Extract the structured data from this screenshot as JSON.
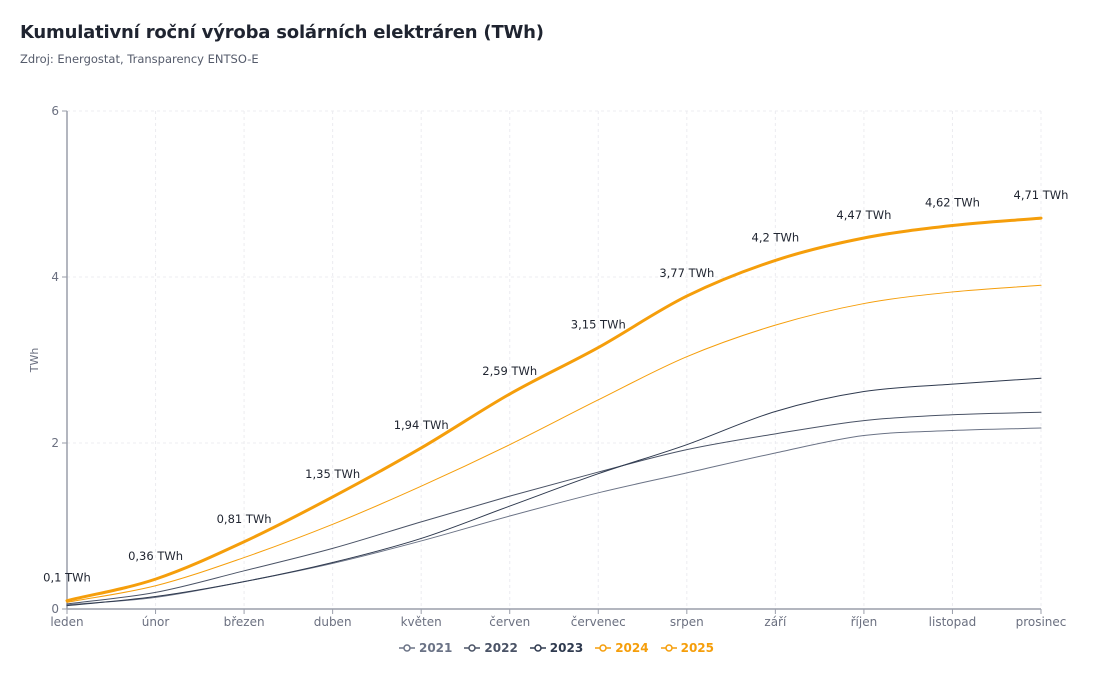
{
  "title": "Kumulativní roční výroba solárních elektráren (TWh)",
  "subtitle": "Zdroj: Energostat, Transparency ENTSO-E",
  "chart_data": {
    "type": "line",
    "title": "Kumulativní roční výroba solárních elektráren (TWh)",
    "ylabel": "TWh",
    "xlabel": "",
    "ylim": [
      0,
      6
    ],
    "yticks": [
      0,
      2,
      4,
      6
    ],
    "grid": true,
    "legend": "bottom",
    "categories": [
      "leden",
      "únor",
      "březen",
      "duben",
      "květen",
      "červen",
      "červenec",
      "srpen",
      "září",
      "říjen",
      "listopad",
      "prosinec"
    ],
    "series": [
      {
        "name": "2021",
        "color": "#6b7386",
        "width": 1,
        "values": [
          0.05,
          0.14,
          0.33,
          0.55,
          0.82,
          1.12,
          1.4,
          1.64,
          1.88,
          2.09,
          2.15,
          2.18
        ]
      },
      {
        "name": "2022",
        "color": "#4a5366",
        "width": 1,
        "values": [
          0.06,
          0.2,
          0.46,
          0.73,
          1.05,
          1.36,
          1.65,
          1.92,
          2.11,
          2.27,
          2.34,
          2.37
        ]
      },
      {
        "name": "2023",
        "color": "#2f3a4f",
        "width": 1,
        "values": [
          0.04,
          0.15,
          0.33,
          0.56,
          0.85,
          1.24,
          1.63,
          1.98,
          2.38,
          2.62,
          2.71,
          2.78
        ]
      },
      {
        "name": "2024",
        "color": "#f59e0b",
        "width": 1,
        "values": [
          0.08,
          0.28,
          0.62,
          1.02,
          1.48,
          1.98,
          2.52,
          3.04,
          3.42,
          3.68,
          3.82,
          3.9
        ]
      },
      {
        "name": "2025",
        "color": "#f59e0b",
        "width": 3,
        "values": [
          0.1,
          0.36,
          0.81,
          1.35,
          1.94,
          2.59,
          3.15,
          3.77,
          4.2,
          4.47,
          4.62,
          4.71
        ],
        "data_labels": [
          "0,1 TWh",
          "0,36 TWh",
          "0,81 TWh",
          "1,35 TWh",
          "1,94 TWh",
          "2,59 TWh",
          "3,15 TWh",
          "3,77 TWh",
          "4,2 TWh",
          "4,47 TWh",
          "4,62 TWh",
          "4,71 TWh"
        ]
      }
    ]
  }
}
